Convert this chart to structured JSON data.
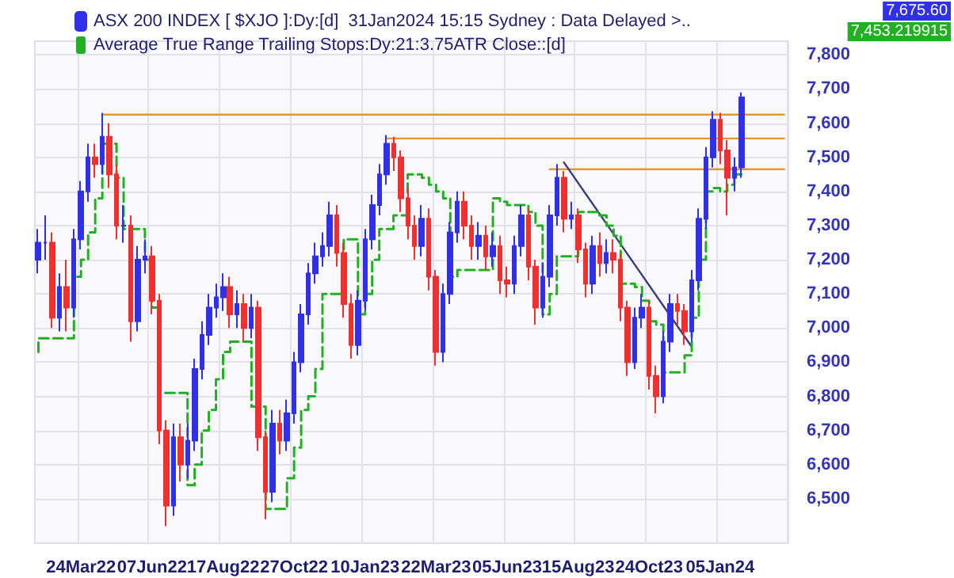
{
  "chart_data": {
    "type": "candlestick",
    "categories": [
      null,
      null,
      null,
      null,
      null,
      null,
      "24Mar22",
      null,
      null,
      null,
      null,
      null,
      null,
      null,
      null,
      null,
      "07Jun22",
      null,
      null,
      null,
      null,
      null,
      null,
      null,
      null,
      null,
      "17Aug22",
      null,
      null,
      null,
      null,
      null,
      null,
      null,
      null,
      null,
      "27Oct22",
      null,
      null,
      null,
      null,
      null,
      null,
      null,
      null,
      null,
      "10Jan23",
      null,
      null,
      null,
      null,
      null,
      null,
      null,
      null,
      null,
      "22Mar23",
      null,
      null,
      null,
      null,
      null,
      null,
      null,
      null,
      null,
      "05Jun23",
      null,
      null,
      null,
      null,
      null,
      null,
      null,
      null,
      null,
      "15Aug23",
      null,
      null,
      null,
      null,
      null,
      null,
      null,
      null,
      null,
      "24Oct23",
      null,
      null,
      null,
      null,
      null,
      null,
      null,
      null,
      null,
      "05Jan24",
      null,
      null,
      null,
      null,
      null,
      null,
      null,
      null,
      null
    ],
    "ylim": [
      6370,
      7840
    ],
    "yticks": [
      {
        "value": 6500,
        "label": "6,500"
      },
      {
        "value": 6600,
        "label": "6,600"
      },
      {
        "value": 6700,
        "label": "6,700"
      },
      {
        "value": 6800,
        "label": "6,800"
      },
      {
        "value": 6900,
        "label": "6,900"
      },
      {
        "value": 7000,
        "label": "7,000"
      },
      {
        "value": 7100,
        "label": "7,100"
      },
      {
        "value": 7200,
        "label": "7,200"
      },
      {
        "value": 7300,
        "label": "7,300"
      },
      {
        "value": 7400,
        "label": "7,400"
      },
      {
        "value": 7500,
        "label": "7,500"
      },
      {
        "value": 7600,
        "label": "7,600"
      },
      {
        "value": 7700,
        "label": "7,700"
      },
      {
        "value": 7800,
        "label": "7,800"
      }
    ],
    "grid": true,
    "legend": "top left",
    "annotations": [
      "7,675.60",
      "7,453.219915"
    ],
    "series": [
      {
        "name": "ASX 200 INDEX [ $XJO ]:Dy:[d]  31Jan2024 15:15 Sydney : Data Delayed >..",
        "color": "#3030e8",
        "ohlc": [
          [
            7200,
            7290,
            7160,
            7250
          ],
          [
            7250,
            7330,
            7200,
            7250
          ],
          [
            7250,
            7280,
            7000,
            7030
          ],
          [
            7030,
            7160,
            6990,
            7120
          ],
          [
            7120,
            7200,
            6990,
            7060
          ],
          [
            7060,
            7290,
            7030,
            7260
          ],
          [
            7260,
            7430,
            7230,
            7400
          ],
          [
            7400,
            7540,
            7370,
            7500
          ],
          [
            7500,
            7540,
            7440,
            7480
          ],
          [
            7480,
            7630,
            7450,
            7560
          ],
          [
            7560,
            7600,
            7410,
            7450
          ],
          [
            7450,
            7480,
            7260,
            7300
          ],
          [
            7300,
            7360,
            7250,
            7300
          ],
          [
            7300,
            7330,
            6960,
            7020
          ],
          [
            7020,
            7240,
            6990,
            7200
          ],
          [
            7200,
            7260,
            7160,
            7210
          ],
          [
            7210,
            7240,
            7040,
            7080
          ],
          [
            7080,
            7100,
            6660,
            6700
          ],
          [
            6700,
            6730,
            6420,
            6480
          ],
          [
            6480,
            6720,
            6450,
            6680
          ],
          [
            6680,
            6720,
            6550,
            6600
          ],
          [
            6600,
            6720,
            6560,
            6670
          ],
          [
            6670,
            6910,
            6640,
            6880
          ],
          [
            6880,
            7020,
            6850,
            6980
          ],
          [
            6980,
            7100,
            6950,
            7060
          ],
          [
            7060,
            7130,
            7030,
            7090
          ],
          [
            7090,
            7160,
            7050,
            7120
          ],
          [
            7120,
            7150,
            7000,
            7040
          ],
          [
            7040,
            7110,
            7000,
            7070
          ],
          [
            7070,
            7100,
            6960,
            7000
          ],
          [
            7000,
            7100,
            6970,
            7060
          ],
          [
            7060,
            7080,
            6640,
            6680
          ],
          [
            6680,
            6700,
            6440,
            6520
          ],
          [
            6520,
            6760,
            6490,
            6720
          ],
          [
            6720,
            6760,
            6630,
            6670
          ],
          [
            6670,
            6790,
            6640,
            6750
          ],
          [
            6750,
            6930,
            6720,
            6900
          ],
          [
            6900,
            7070,
            6870,
            7040
          ],
          [
            7040,
            7190,
            7010,
            7160
          ],
          [
            7160,
            7250,
            7130,
            7210
          ],
          [
            7210,
            7280,
            7180,
            7240
          ],
          [
            7240,
            7370,
            7210,
            7330
          ],
          [
            7330,
            7360,
            7180,
            7220
          ],
          [
            7220,
            7250,
            7030,
            7070
          ],
          [
            7070,
            7100,
            6910,
            6950
          ],
          [
            6950,
            7110,
            6920,
            7080
          ],
          [
            7080,
            7290,
            7050,
            7260
          ],
          [
            7260,
            7390,
            7230,
            7360
          ],
          [
            7360,
            7480,
            7330,
            7450
          ],
          [
            7450,
            7565,
            7420,
            7540
          ],
          [
            7540,
            7560,
            7460,
            7500
          ],
          [
            7500,
            7520,
            7340,
            7380
          ],
          [
            7380,
            7410,
            7260,
            7300
          ],
          [
            7300,
            7330,
            7200,
            7240
          ],
          [
            7240,
            7360,
            7210,
            7320
          ],
          [
            7320,
            7350,
            7110,
            7150
          ],
          [
            7150,
            7170,
            6890,
            6930
          ],
          [
            6930,
            7130,
            6900,
            7100
          ],
          [
            7100,
            7310,
            7070,
            7280
          ],
          [
            7280,
            7400,
            7250,
            7370
          ],
          [
            7370,
            7400,
            7260,
            7300
          ],
          [
            7300,
            7330,
            7200,
            7240
          ],
          [
            7240,
            7310,
            7200,
            7270
          ],
          [
            7270,
            7300,
            7170,
            7210
          ],
          [
            7210,
            7280,
            7180,
            7240
          ],
          [
            7240,
            7270,
            7100,
            7140
          ],
          [
            7140,
            7180,
            7090,
            7130
          ],
          [
            7130,
            7270,
            7100,
            7240
          ],
          [
            7240,
            7360,
            7210,
            7330
          ],
          [
            7330,
            7350,
            7140,
            7180
          ],
          [
            7180,
            7200,
            7010,
            7060
          ],
          [
            7060,
            7190,
            7030,
            7150
          ],
          [
            7150,
            7360,
            7120,
            7330
          ],
          [
            7330,
            7480,
            7300,
            7440
          ],
          [
            7440,
            7460,
            7280,
            7320
          ],
          [
            7320,
            7370,
            7290,
            7330
          ],
          [
            7330,
            7350,
            7190,
            7230
          ],
          [
            7230,
            7250,
            7090,
            7130
          ],
          [
            7130,
            7270,
            7100,
            7240
          ],
          [
            7240,
            7280,
            7150,
            7190
          ],
          [
            7190,
            7260,
            7160,
            7220
          ],
          [
            7220,
            7260,
            7160,
            7200
          ],
          [
            7200,
            7220,
            7020,
            7060
          ],
          [
            7060,
            7080,
            6860,
            6900
          ],
          [
            6900,
            7060,
            6880,
            7030
          ],
          [
            7030,
            7100,
            7000,
            7060
          ],
          [
            7060,
            7080,
            6820,
            6860
          ],
          [
            6860,
            6890,
            6750,
            6800
          ],
          [
            6800,
            6990,
            6780,
            6960
          ],
          [
            6960,
            7100,
            6930,
            7070
          ],
          [
            7070,
            7100,
            7010,
            7050
          ],
          [
            7050,
            7070,
            6950,
            6990
          ],
          [
            6990,
            7170,
            6960,
            7140
          ],
          [
            7140,
            7350,
            7110,
            7320
          ],
          [
            7320,
            7530,
            7290,
            7500
          ],
          [
            7500,
            7635,
            7470,
            7610
          ],
          [
            7610,
            7630,
            7480,
            7520
          ],
          [
            7520,
            7550,
            7330,
            7440
          ],
          [
            7440,
            7500,
            7400,
            7470
          ],
          [
            7470,
            7690,
            7440,
            7675.6
          ],
          null,
          null,
          null,
          null,
          null,
          null
        ],
        "colors": [
          "#3030e8",
          "#3030e8",
          "#f03030",
          "#3030e8",
          "#f03030",
          "#3030e8",
          "#3030e8",
          "#3030e8",
          "#f03030",
          "#3030e8",
          "#f03030",
          "#f03030",
          "#3030e8",
          "#f03030",
          "#3030e8",
          "#3030e8",
          "#f03030",
          "#f03030",
          "#f03030",
          "#3030e8",
          "#f03030",
          "#3030e8",
          "#3030e8",
          "#3030e8",
          "#3030e8",
          "#3030e8",
          "#3030e8",
          "#f03030",
          "#3030e8",
          "#f03030",
          "#3030e8",
          "#f03030",
          "#f03030",
          "#3030e8",
          "#f03030",
          "#3030e8",
          "#3030e8",
          "#3030e8",
          "#3030e8",
          "#3030e8",
          "#3030e8",
          "#3030e8",
          "#f03030",
          "#f03030",
          "#f03030",
          "#3030e8",
          "#3030e8",
          "#3030e8",
          "#3030e8",
          "#3030e8",
          "#f03030",
          "#f03030",
          "#f03030",
          "#f03030",
          "#3030e8",
          "#f03030",
          "#f03030",
          "#3030e8",
          "#3030e8",
          "#3030e8",
          "#f03030",
          "#f03030",
          "#3030e8",
          "#f03030",
          "#3030e8",
          "#f03030",
          "#f03030",
          "#3030e8",
          "#3030e8",
          "#f03030",
          "#f03030",
          "#3030e8",
          "#3030e8",
          "#3030e8",
          "#f03030",
          "#3030e8",
          "#f03030",
          "#f03030",
          "#3030e8",
          "#f03030",
          "#3030e8",
          "#f03030",
          "#f03030",
          "#f03030",
          "#3030e8",
          "#3030e8",
          "#f03030",
          "#f03030",
          "#3030e8",
          "#3030e8",
          "#f03030",
          "#f03030",
          "#3030e8",
          "#3030e8",
          "#3030e8",
          "#3030e8",
          "#f03030",
          "#f03030",
          "#3030e8",
          "#3030e8",
          null,
          null,
          null,
          null,
          null,
          null
        ]
      },
      {
        "name": "Average True Range Trailing Stops:Dy:21:3.75ATR Close::[d]",
        "type": "step",
        "color": "#22b022",
        "line_style": "dashed",
        "values": [
          6930,
          6970,
          6970,
          6970,
          6970,
          6970,
          7150,
          7200,
          7280,
          7380,
          7540,
          7540,
          7440,
          7290,
          7290,
          7290,
          7200,
          7060,
          6810,
          6810,
          6810,
          6810,
          6540,
          6600,
          6700,
          6760,
          6850,
          6930,
          6960,
          6960,
          6960,
          6770,
          6770,
          6470,
          6470,
          6470,
          6560,
          6650,
          6760,
          6800,
          6880,
          7100,
          7100,
          7100,
          7260,
          7260,
          7040,
          7100,
          7200,
          7290,
          7290,
          7330,
          7330,
          7450,
          7450,
          7440,
          7420,
          7400,
          7380,
          7150,
          7170,
          7170,
          7170,
          7170,
          7170,
          7380,
          7370,
          7360,
          7360,
          7360,
          7340,
          7300,
          7040,
          7100,
          7210,
          7210,
          7210,
          7340,
          7340,
          7340,
          7330,
          7300,
          7270,
          7130,
          7130,
          7120,
          7080,
          7020,
          7010,
          6870,
          6870,
          6870,
          6920,
          7030,
          7200,
          7400,
          7410,
          7400,
          7420,
          7450,
          null,
          null,
          null,
          null,
          null,
          null
        ]
      },
      {
        "type": "line",
        "color": "#e8962e",
        "values": [
          null,
          null,
          null,
          null,
          null,
          null,
          null,
          null,
          null,
          7625,
          7625,
          7625,
          7625,
          7625,
          7625,
          7625,
          7625,
          7625,
          7625,
          7625,
          7625,
          7625,
          7625,
          7625,
          7625,
          7625,
          7625,
          7625,
          7625,
          7625,
          7625,
          7625,
          7625,
          7625,
          7625,
          7625,
          7625,
          7625,
          7625,
          7625,
          7625,
          7625,
          7625,
          7625,
          7625,
          7625,
          7625,
          7625,
          7625,
          7625,
          7625,
          7625,
          7625,
          7625,
          7625,
          7625,
          7625,
          7625,
          7625,
          7625,
          7625,
          7625,
          7625,
          7625,
          7625,
          7625,
          7625,
          7625,
          7625,
          7625,
          7625,
          7625,
          7625,
          7625,
          7625,
          7625,
          7625,
          7625,
          7625,
          7625,
          7625,
          7625,
          7625,
          7625,
          7625,
          7625,
          7625,
          7625,
          7625,
          7625,
          7625,
          7625,
          7625,
          7625,
          7625,
          7625,
          7625,
          7625,
          7625,
          7625,
          7625,
          7625,
          7625,
          7625,
          7625,
          7625
        ]
      },
      {
        "type": "line",
        "color": "#e8962e",
        "values": [
          null,
          null,
          null,
          null,
          null,
          null,
          null,
          null,
          null,
          null,
          null,
          null,
          null,
          null,
          null,
          null,
          null,
          null,
          null,
          null,
          null,
          null,
          null,
          null,
          null,
          null,
          null,
          null,
          null,
          null,
          null,
          null,
          null,
          null,
          null,
          null,
          null,
          null,
          null,
          null,
          null,
          null,
          null,
          null,
          null,
          null,
          null,
          null,
          null,
          7555,
          7555,
          7555,
          7555,
          7555,
          7555,
          7555,
          7555,
          7555,
          7555,
          7555,
          7555,
          7555,
          7555,
          7555,
          7555,
          7555,
          7555,
          7555,
          7555,
          7555,
          7555,
          7555,
          7555,
          7555,
          7555,
          7555,
          7555,
          7555,
          7555,
          7555,
          7555,
          7555,
          7555,
          7555,
          7555,
          7555,
          7555,
          7555,
          7555,
          7555,
          7555,
          7555,
          7555,
          7555,
          7555,
          7555,
          7555,
          7555,
          7555,
          7555,
          7555,
          7555,
          7555,
          7555,
          7555,
          7555
        ]
      },
      {
        "type": "line",
        "color": "#e8962e",
        "values": [
          null,
          null,
          null,
          null,
          null,
          null,
          null,
          null,
          null,
          null,
          null,
          null,
          null,
          null,
          null,
          null,
          null,
          null,
          null,
          null,
          null,
          null,
          null,
          null,
          null,
          null,
          null,
          null,
          null,
          null,
          null,
          null,
          null,
          null,
          null,
          null,
          null,
          null,
          null,
          null,
          null,
          null,
          null,
          null,
          null,
          null,
          null,
          null,
          null,
          null,
          null,
          null,
          null,
          null,
          null,
          null,
          null,
          null,
          null,
          null,
          null,
          null,
          null,
          null,
          null,
          null,
          null,
          null,
          null,
          null,
          null,
          null,
          7465,
          7465,
          7465,
          7465,
          7465,
          7465,
          7465,
          7465,
          7465,
          7465,
          7465,
          7465,
          7465,
          7465,
          7465,
          7465,
          7465,
          7465,
          7465,
          7465,
          7465,
          7465,
          7465,
          7465,
          7465,
          7465,
          7465,
          7465,
          7465,
          7465,
          7465,
          7465,
          7465,
          7465
        ]
      },
      {
        "type": "line",
        "color": "#3a3a80",
        "values": [
          null,
          null,
          null,
          null,
          null,
          null,
          null,
          null,
          null,
          null,
          null,
          null,
          null,
          null,
          null,
          null,
          null,
          null,
          null,
          null,
          null,
          null,
          null,
          null,
          null,
          null,
          null,
          null,
          null,
          null,
          null,
          null,
          null,
          null,
          null,
          null,
          null,
          null,
          null,
          null,
          null,
          null,
          null,
          null,
          null,
          null,
          null,
          null,
          null,
          null,
          null,
          null,
          null,
          null,
          null,
          null,
          null,
          null,
          null,
          null,
          null,
          null,
          null,
          null,
          null,
          null,
          null,
          null,
          null,
          null,
          null,
          null,
          null,
          null,
          7485,
          null,
          null,
          null,
          null,
          null,
          null,
          null,
          null,
          null,
          null,
          null,
          null,
          null,
          null,
          null,
          null,
          null,
          6945,
          null,
          null,
          null,
          null,
          null,
          null,
          null,
          null,
          null,
          null,
          null,
          null,
          null
        ]
      }
    ]
  }
}
